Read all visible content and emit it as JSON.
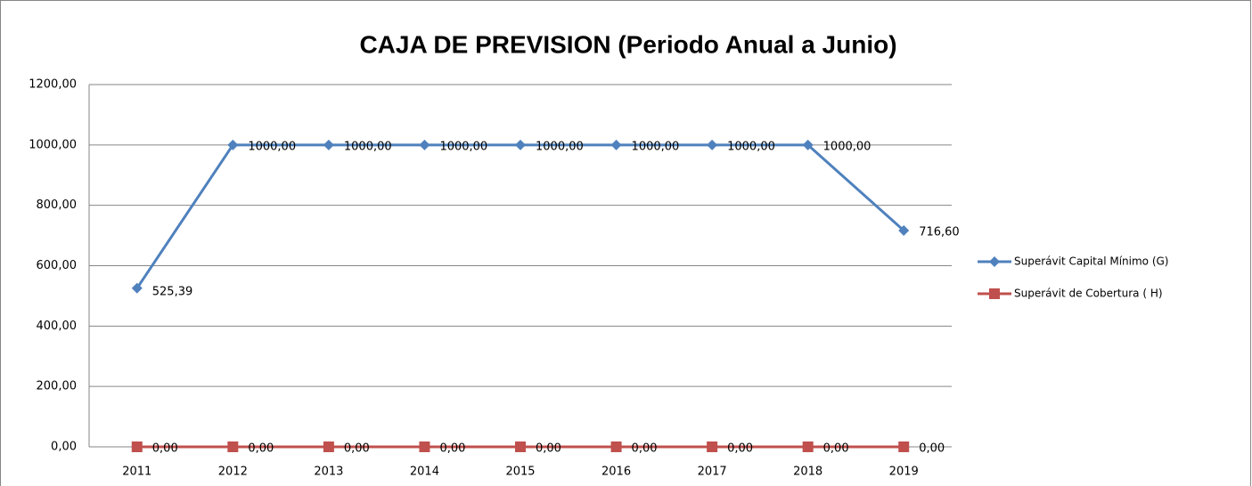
{
  "chart_data": {
    "type": "line",
    "title": "CAJA DE PREVISION (Periodo Anual a Junio)",
    "categories": [
      "2011",
      "2012",
      "2013",
      "2014",
      "2015",
      "2016",
      "2017",
      "2018",
      "2019"
    ],
    "series": [
      {
        "name": "Superávit Capital Mínimo  (G)",
        "color": "#4f81bd",
        "marker": "diamond",
        "values": [
          525.39,
          1000,
          1000,
          1000,
          1000,
          1000,
          1000,
          1000,
          716.6
        ],
        "value_labels": [
          "525,39",
          "1000,00",
          "1000,00",
          "1000,00",
          "1000,00",
          "1000,00",
          "1000,00",
          "1000,00",
          "716,60"
        ]
      },
      {
        "name": "Superávit de Cobertura ( H)",
        "color": "#c0504d",
        "marker": "square",
        "values": [
          0,
          0,
          0,
          0,
          0,
          0,
          0,
          0,
          0
        ],
        "value_labels": [
          "0,00",
          "0,00",
          "0,00",
          "0,00",
          "0,00",
          "0,00",
          "0,00",
          "0,00",
          "0,00"
        ]
      }
    ],
    "ylim": [
      0,
      1200
    ],
    "yticks": [
      {
        "value": 0,
        "label": "0,00"
      },
      {
        "value": 200,
        "label": "200,00"
      },
      {
        "value": 400,
        "label": "400,00"
      },
      {
        "value": 600,
        "label": "600,00"
      },
      {
        "value": 800,
        "label": "800,00"
      },
      {
        "value": 1000,
        "label": "1000,00"
      },
      {
        "value": 1200,
        "label": "1200,00"
      }
    ],
    "grid": true,
    "legend": "right"
  }
}
